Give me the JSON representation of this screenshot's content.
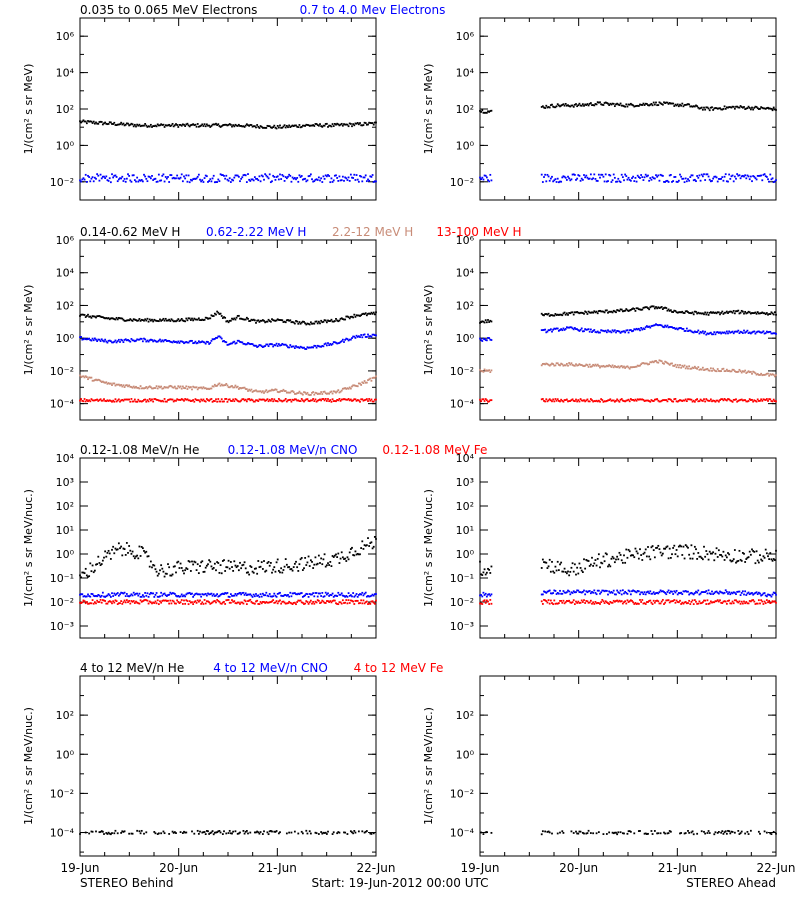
{
  "chart_data": {
    "type": "scatter",
    "x_ticks": [
      "19-Jun",
      "20-Jun",
      "21-Jun",
      "22-Jun"
    ],
    "footer": {
      "left": "STEREO Behind",
      "center": "Start: 19-Jun-2012 00:00 UTC",
      "right": "STEREO Ahead"
    },
    "colors": {
      "black": "#000000",
      "blue": "#0000ff",
      "brown": "#c88c78",
      "red": "#ff0000"
    },
    "rows": [
      {
        "legend": [
          {
            "text": "0.035 to 0.065 MeV Electrons",
            "color": "#000000"
          },
          {
            "text": "0.7 to 4.0 Mev Electrons",
            "color": "#0000ff"
          }
        ],
        "ylabel_left": "1/(cm² s sr MeV)",
        "ylabel_right": "1/(cm² s sr MeV)",
        "ylog": [
          -3,
          7
        ],
        "yticks": [
          {
            "exp": -2,
            "label": "10⁻²"
          },
          {
            "exp": 0,
            "label": "10⁰"
          },
          {
            "exp": 2,
            "label": "10²"
          },
          {
            "exp": 4,
            "label": "10⁴"
          },
          {
            "exp": 6,
            "label": "10⁶"
          }
        ],
        "series": [
          {
            "color": "#000000",
            "behind": [
              [
                0,
                1.3
              ],
              [
                0.3,
                1.2
              ],
              [
                0.6,
                1.1
              ],
              [
                1,
                1.1
              ],
              [
                1.3,
                1.1
              ],
              [
                1.6,
                1.1
              ],
              [
                2,
                1.0
              ],
              [
                2.3,
                1.1
              ],
              [
                2.6,
                1.1
              ],
              [
                3,
                1.2
              ]
            ],
            "ahead": [
              [
                0,
                1.9
              ],
              [
                0.2,
                1.8
              ],
              [
                0.6,
                2.1
              ],
              [
                0.8,
                2.2
              ],
              [
                1,
                2.2
              ],
              [
                1.2,
                2.3
              ],
              [
                1.5,
                2.2
              ],
              [
                1.8,
                2.3
              ],
              [
                2.1,
                2.2
              ],
              [
                2.3,
                2.0
              ],
              [
                2.6,
                2.1
              ],
              [
                3,
                2.0
              ]
            ]
          },
          {
            "color": "#0000ff",
            "behind": [
              [
                0,
                -1.8
              ],
              [
                1,
                -1.8
              ],
              [
                2,
                -1.8
              ],
              [
                3,
                -1.8
              ]
            ],
            "ahead": [
              [
                0,
                -1.8
              ],
              [
                0.2,
                -1.8
              ],
              [
                0.6,
                -1.8
              ],
              [
                1.5,
                -1.8
              ],
              [
                2.5,
                -1.8
              ],
              [
                3,
                -1.8
              ]
            ]
          }
        ]
      },
      {
        "legend": [
          {
            "text": "0.14-0.62 MeV H",
            "color": "#000000"
          },
          {
            "text": "0.62-2.22 MeV H",
            "color": "#0000ff"
          },
          {
            "text": "2.2-12 MeV H",
            "color": "#c88c78"
          },
          {
            "text": "13-100 MeV H",
            "color": "#ff0000"
          }
        ],
        "ylabel_left": "1/(cm² s sr MeV)",
        "ylabel_right": "1/(cm² s sr MeV)",
        "ylog": [
          -5,
          6
        ],
        "yticks": [
          {
            "exp": -4,
            "label": "10⁻⁴"
          },
          {
            "exp": -2,
            "label": "10⁻²"
          },
          {
            "exp": 0,
            "label": "10⁰"
          },
          {
            "exp": 2,
            "label": "10²"
          },
          {
            "exp": 4,
            "label": "10⁴"
          },
          {
            "exp": 6,
            "label": "10⁶"
          }
        ],
        "series": [
          {
            "color": "#000000",
            "behind": [
              [
                0,
                1.4
              ],
              [
                0.3,
                1.2
              ],
              [
                0.6,
                1.1
              ],
              [
                1,
                1.1
              ],
              [
                1.3,
                1.2
              ],
              [
                1.4,
                1.6
              ],
              [
                1.5,
                1.0
              ],
              [
                1.6,
                1.3
              ],
              [
                1.8,
                1.0
              ],
              [
                2,
                1.1
              ],
              [
                2.3,
                0.9
              ],
              [
                2.6,
                1.1
              ],
              [
                2.8,
                1.4
              ],
              [
                3,
                1.5
              ]
            ],
            "ahead": [
              [
                0,
                1.0
              ],
              [
                0.2,
                1.1
              ],
              [
                0.6,
                1.4
              ],
              [
                0.9,
                1.5
              ],
              [
                1.2,
                1.6
              ],
              [
                1.5,
                1.7
              ],
              [
                1.8,
                1.9
              ],
              [
                2.0,
                1.6
              ],
              [
                2.3,
                1.5
              ],
              [
                2.6,
                1.6
              ],
              [
                3,
                1.5
              ]
            ]
          },
          {
            "color": "#0000ff",
            "behind": [
              [
                0,
                0.0
              ],
              [
                0.3,
                -0.2
              ],
              [
                0.6,
                -0.1
              ],
              [
                1,
                -0.2
              ],
              [
                1.3,
                -0.3
              ],
              [
                1.4,
                0.1
              ],
              [
                1.5,
                -0.4
              ],
              [
                1.6,
                -0.2
              ],
              [
                1.8,
                -0.5
              ],
              [
                2,
                -0.4
              ],
              [
                2.3,
                -0.6
              ],
              [
                2.6,
                -0.3
              ],
              [
                2.8,
                0.1
              ],
              [
                3,
                0.2
              ]
            ],
            "ahead": [
              [
                0,
                -0.1
              ],
              [
                0.2,
                0.0
              ],
              [
                0.6,
                0.4
              ],
              [
                0.9,
                0.6
              ],
              [
                1.2,
                0.4
              ],
              [
                1.5,
                0.4
              ],
              [
                1.8,
                0.8
              ],
              [
                2.0,
                0.6
              ],
              [
                2.3,
                0.3
              ],
              [
                2.6,
                0.4
              ],
              [
                3,
                0.3
              ]
            ]
          },
          {
            "color": "#c88c78",
            "behind": [
              [
                0,
                -2.3
              ],
              [
                0.3,
                -2.8
              ],
              [
                0.6,
                -3.0
              ],
              [
                1,
                -3.0
              ],
              [
                1.3,
                -3.1
              ],
              [
                1.4,
                -2.8
              ],
              [
                1.6,
                -3.0
              ],
              [
                1.8,
                -3.3
              ],
              [
                2,
                -3.2
              ],
              [
                2.3,
                -3.4
              ],
              [
                2.6,
                -3.3
              ],
              [
                2.8,
                -2.9
              ],
              [
                3,
                -2.4
              ]
            ],
            "ahead": [
              [
                0,
                -2.0
              ],
              [
                0.2,
                -2.0
              ],
              [
                0.6,
                -1.6
              ],
              [
                0.9,
                -1.6
              ],
              [
                1.2,
                -1.7
              ],
              [
                1.5,
                -1.8
              ],
              [
                1.8,
                -1.4
              ],
              [
                2.0,
                -1.7
              ],
              [
                2.3,
                -1.9
              ],
              [
                2.6,
                -2.0
              ],
              [
                3,
                -2.3
              ]
            ]
          },
          {
            "color": "#ff0000",
            "behind": [
              [
                0,
                -3.8
              ],
              [
                1,
                -3.8
              ],
              [
                2,
                -3.8
              ],
              [
                3,
                -3.8
              ]
            ],
            "ahead": [
              [
                0,
                -3.8
              ],
              [
                0.2,
                -3.8
              ],
              [
                0.6,
                -3.8
              ],
              [
                1.5,
                -3.8
              ],
              [
                2.5,
                -3.8
              ],
              [
                3,
                -3.8
              ]
            ]
          }
        ]
      },
      {
        "legend": [
          {
            "text": "0.12-1.08 MeV/n He",
            "color": "#000000"
          },
          {
            "text": "0.12-1.08 MeV/n CNO",
            "color": "#0000ff"
          },
          {
            "text": "0.12-1.08 MeV Fe",
            "color": "#ff0000"
          }
        ],
        "ylabel_left": "1/(cm² s sr MeV/nuc.)",
        "ylabel_right": "1/(cm² s sr MeV/nuc.)",
        "ylog": [
          -3.5,
          4
        ],
        "yticks": [
          {
            "exp": -3,
            "label": "10⁻³"
          },
          {
            "exp": -2,
            "label": "10⁻²"
          },
          {
            "exp": -1,
            "label": "10⁻¹"
          },
          {
            "exp": 0,
            "label": "10⁰"
          },
          {
            "exp": 1,
            "label": "10¹"
          },
          {
            "exp": 2,
            "label": "10²"
          },
          {
            "exp": 3,
            "label": "10³"
          },
          {
            "exp": 4,
            "label": "10⁴"
          }
        ],
        "series": [
          {
            "color": "#000000",
            "behind": [
              [
                0,
                -1.0
              ],
              [
                0.2,
                -0.3
              ],
              [
                0.4,
                0.2
              ],
              [
                0.6,
                0.1
              ],
              [
                0.8,
                -0.7
              ],
              [
                1,
                -0.6
              ],
              [
                1.3,
                -0.5
              ],
              [
                1.6,
                -0.6
              ],
              [
                2,
                -0.5
              ],
              [
                2.3,
                -0.4
              ],
              [
                2.6,
                -0.2
              ],
              [
                2.8,
                0.2
              ],
              [
                3,
                0.5
              ]
            ],
            "ahead": [
              [
                0,
                -0.6
              ],
              [
                0.2,
                -0.6
              ],
              [
                0.6,
                -0.3
              ],
              [
                0.9,
                -0.7
              ],
              [
                1.2,
                -0.3
              ],
              [
                1.5,
                -0.1
              ],
              [
                1.8,
                0.1
              ],
              [
                2.1,
                0.1
              ],
              [
                2.4,
                0.0
              ],
              [
                2.7,
                -0.1
              ],
              [
                3,
                -0.1
              ]
            ]
          },
          {
            "color": "#0000ff",
            "behind": [
              [
                0,
                -1.7
              ],
              [
                1,
                -1.7
              ],
              [
                2,
                -1.7
              ],
              [
                3,
                -1.7
              ]
            ],
            "ahead": [
              [
                0,
                -1.7
              ],
              [
                0.2,
                -1.7
              ],
              [
                0.6,
                -1.6
              ],
              [
                1.5,
                -1.6
              ],
              [
                2.5,
                -1.6
              ],
              [
                3,
                -1.7
              ]
            ]
          },
          {
            "color": "#ff0000",
            "behind": [
              [
                0,
                -2.0
              ],
              [
                1,
                -2.0
              ],
              [
                2,
                -2.0
              ],
              [
                3,
                -2.0
              ]
            ],
            "ahead": [
              [
                0,
                -2.0
              ],
              [
                0.2,
                -2.0
              ],
              [
                0.6,
                -2.0
              ],
              [
                1.5,
                -2.0
              ],
              [
                2.5,
                -2.0
              ],
              [
                3,
                -2.0
              ]
            ]
          }
        ]
      },
      {
        "legend": [
          {
            "text": "4 to 12 MeV/n He",
            "color": "#000000"
          },
          {
            "text": "4 to 12 MeV/n CNO",
            "color": "#0000ff"
          },
          {
            "text": "4 to 12 MeV Fe",
            "color": "#ff0000"
          }
        ],
        "ylabel_left": "1/(cm² s sr MeV/nuc.)",
        "ylabel_right": "1/(cm² s sr MeV/nuc.)",
        "ylog": [
          -5.2,
          4
        ],
        "yticks": [
          {
            "exp": -4,
            "label": "10⁻⁴"
          },
          {
            "exp": -2,
            "label": "10⁻²"
          },
          {
            "exp": 0,
            "label": "10⁰"
          },
          {
            "exp": 2,
            "label": "10²"
          }
        ],
        "series": [
          {
            "color": "#000000",
            "behind": [
              [
                0,
                -4.0
              ],
              [
                1,
                -4.0
              ],
              [
                2,
                -4.0
              ],
              [
                3,
                -4.0
              ]
            ],
            "ahead": [
              [
                0,
                -4.0
              ],
              [
                0.2,
                -4.0
              ],
              [
                0.6,
                -4.0
              ],
              [
                1.5,
                -4.0
              ],
              [
                2.5,
                -4.0
              ],
              [
                3,
                -4.0
              ]
            ]
          }
        ]
      }
    ]
  }
}
